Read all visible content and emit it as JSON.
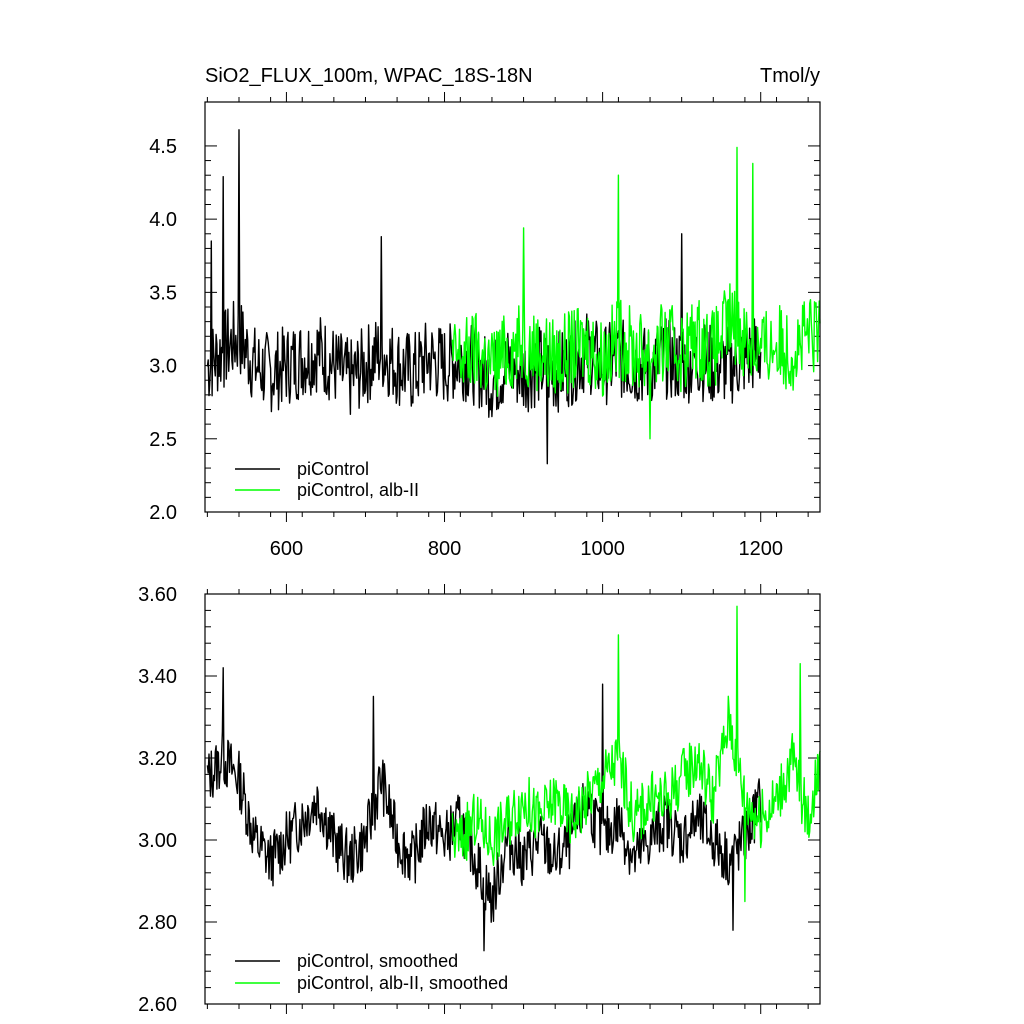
{
  "chart_data": [
    {
      "type": "line",
      "title": "SiO2_FLUX_100m, WPAC_18S-18N",
      "units": "Tmol/y",
      "xlim": [
        497,
        1275
      ],
      "ylim": [
        2.0,
        4.8
      ],
      "x_ticks": [
        600,
        800,
        1000,
        1200
      ],
      "y_ticks": [
        "2.0",
        "2.5",
        "3.0",
        "3.5",
        "4.0",
        "4.5"
      ],
      "colors": {
        "black": "#000000",
        "green": "#00ff00"
      },
      "series": [
        {
          "name": "piControl",
          "color": "#000000",
          "x_start": 500,
          "x_end": 1200,
          "x": [
            500,
            520,
            540,
            560,
            580,
            600,
            620,
            640,
            660,
            680,
            700,
            720,
            740,
            760,
            780,
            800,
            820,
            840,
            860,
            880,
            900,
            920,
            940,
            960,
            980,
            1000,
            1020,
            1040,
            1060,
            1080,
            1100,
            1120,
            1140,
            1160,
            1180,
            1200
          ],
          "y": [
            3.0,
            3.1,
            3.2,
            3.0,
            2.95,
            3.0,
            3.05,
            3.1,
            3.0,
            2.9,
            3.0,
            3.1,
            3.0,
            2.95,
            3.05,
            3.0,
            3.05,
            3.0,
            2.9,
            3.0,
            2.95,
            3.0,
            2.95,
            3.0,
            3.1,
            3.0,
            3.05,
            3.0,
            3.0,
            3.05,
            3.0,
            3.05,
            3.0,
            3.0,
            3.05,
            3.1
          ],
          "peaks": [
            [
              520,
              4.29
            ],
            [
              540,
              4.61
            ],
            [
              505,
              3.85
            ],
            [
              720,
              3.88
            ],
            [
              930,
              2.33
            ],
            [
              1100,
              3.9
            ]
          ]
        },
        {
          "name": "piControl, alb-II",
          "color": "#00ff00",
          "x_start": 810,
          "x_end": 1275,
          "x": [
            820,
            840,
            860,
            880,
            900,
            920,
            940,
            960,
            980,
            1000,
            1020,
            1040,
            1060,
            1080,
            1100,
            1120,
            1140,
            1160,
            1180,
            1200,
            1220,
            1240,
            1260
          ],
          "y": [
            3.05,
            3.1,
            3.0,
            3.1,
            3.15,
            3.1,
            3.05,
            3.1,
            3.15,
            3.05,
            3.2,
            3.1,
            3.1,
            3.15,
            3.1,
            3.2,
            3.1,
            3.3,
            3.2,
            3.1,
            3.15,
            3.1,
            3.2
          ],
          "peaks": [
            [
              900,
              3.94
            ],
            [
              1020,
              4.3
            ],
            [
              1170,
              4.49
            ],
            [
              1190,
              4.38
            ],
            [
              1060,
              2.5
            ]
          ]
        }
      ],
      "legend": [
        {
          "label": "piControl",
          "color": "#000000"
        },
        {
          "label": "piControl, alb-II",
          "color": "#00ff00"
        }
      ]
    },
    {
      "type": "line",
      "xlim": [
        497,
        1275
      ],
      "ylim": [
        2.6,
        3.6
      ],
      "x_ticks": [
        600,
        800,
        1000,
        1200
      ],
      "y_ticks": [
        "2.60",
        "2.80",
        "3.00",
        "3.20",
        "3.40",
        "3.60"
      ],
      "series": [
        {
          "name": "piControl, smoothed",
          "color": "#000000",
          "x_start": 500,
          "x_end": 1200,
          "x": [
            500,
            520,
            540,
            560,
            580,
            600,
            620,
            640,
            660,
            680,
            700,
            720,
            740,
            760,
            780,
            800,
            820,
            840,
            860,
            880,
            900,
            920,
            940,
            960,
            980,
            1000,
            1020,
            1040,
            1060,
            1080,
            1100,
            1120,
            1140,
            1160,
            1180,
            1200
          ],
          "y": [
            3.15,
            3.2,
            3.15,
            3.0,
            2.95,
            3.0,
            3.05,
            3.1,
            3.0,
            2.95,
            3.0,
            3.15,
            3.0,
            2.95,
            3.05,
            3.0,
            3.05,
            2.95,
            2.85,
            3.0,
            2.95,
            3.0,
            2.95,
            3.0,
            3.1,
            3.0,
            3.05,
            2.95,
            3.0,
            3.05,
            3.0,
            3.05,
            3.0,
            2.95,
            3.0,
            3.1
          ],
          "peaks": [
            [
              520,
              3.42
            ],
            [
              710,
              3.35
            ],
            [
              850,
              2.73
            ],
            [
              1000,
              3.38
            ],
            [
              1165,
              2.78
            ]
          ]
        },
        {
          "name": "piControl, alb-II, smoothed",
          "color": "#00ff00",
          "x_start": 810,
          "x_end": 1275,
          "x": [
            820,
            840,
            860,
            880,
            900,
            920,
            940,
            960,
            980,
            1000,
            1020,
            1040,
            1060,
            1080,
            1100,
            1120,
            1140,
            1160,
            1180,
            1200,
            1220,
            1240,
            1260,
            1275
          ],
          "y": [
            3.0,
            3.05,
            3.0,
            3.05,
            3.1,
            3.05,
            3.1,
            3.05,
            3.1,
            3.15,
            3.2,
            3.05,
            3.1,
            3.1,
            3.15,
            3.2,
            3.1,
            3.3,
            3.1,
            3.05,
            3.1,
            3.2,
            3.05,
            3.2
          ],
          "peaks": [
            [
              1020,
              3.5
            ],
            [
              1170,
              3.57
            ],
            [
              1250,
              3.43
            ],
            [
              1180,
              2.85
            ]
          ]
        }
      ],
      "legend": [
        {
          "label": "piControl, smoothed",
          "color": "#000000"
        },
        {
          "label": "piControl, alb-II, smoothed",
          "color": "#00ff00"
        }
      ]
    }
  ]
}
